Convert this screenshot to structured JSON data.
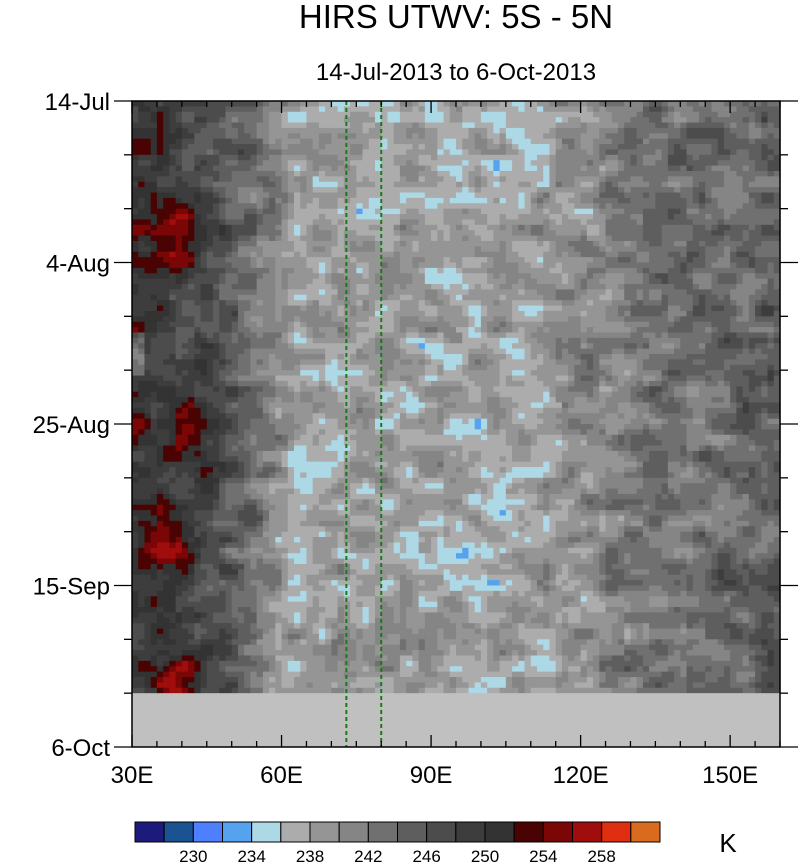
{
  "chart_data": {
    "type": "heatmap",
    "title": "HIRS UTWV: 5S - 5N",
    "subtitle": "14-Jul-2013 to 6-Oct-2013",
    "xlabel": "",
    "ylabel": "",
    "x_range": [
      30,
      160
    ],
    "x_ticks": [
      30,
      60,
      90,
      120,
      150
    ],
    "x_tick_labels": [
      "30E",
      "60E",
      "90E",
      "120E",
      "150E"
    ],
    "x_minor_step": 5,
    "y_range_days": [
      0,
      84
    ],
    "y_ticks_days": [
      0,
      21,
      42,
      63,
      84
    ],
    "y_tick_labels": [
      "14-Jul",
      "4-Aug",
      "25-Aug",
      "15-Sep",
      "6-Oct"
    ],
    "y_minor_step_days": 7,
    "data_end_day": 77,
    "missing_color": "#c0c0c0",
    "reference_lines_x": [
      73,
      80
    ],
    "reference_line_color": "#1a7a1a",
    "colorbar": {
      "unit": "K",
      "labels": [
        "230",
        "234",
        "238",
        "242",
        "246",
        "250",
        "254",
        "258"
      ],
      "label_levels": [
        230,
        234,
        238,
        242,
        246,
        250,
        254,
        258
      ],
      "levels_min": 228,
      "levels_step": 2,
      "colors": [
        "#1c1a7a",
        "#1a5292",
        "#4d7fff",
        "#55a3ee",
        "#add8e6",
        "#acacac",
        "#959595",
        "#858585",
        "#707070",
        "#5e5e5e",
        "#4c4c4c",
        "#3d3d3d",
        "#333333",
        "#4a0303",
        "#7a0606",
        "#a00d0d",
        "#e02e10",
        "#d96b1e"
      ]
    },
    "field_description": "Temperature (K) as a function of longitude and date; warm/dry (dark, red) near 30E-45E, cool/moist (blue) between 60E and 130E"
  }
}
